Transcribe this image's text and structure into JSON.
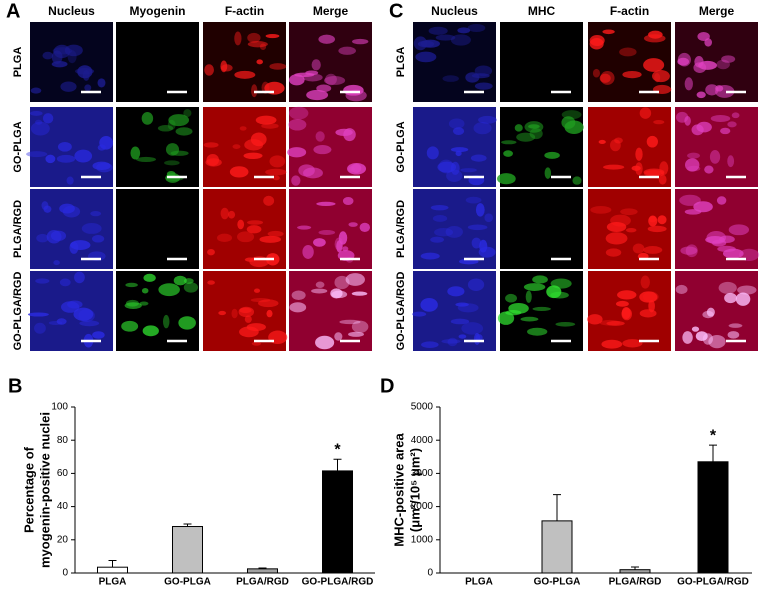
{
  "image_panels": [
    {
      "letter": "A",
      "columns": [
        "Nucleus",
        "Myogenin",
        "F-actin",
        "Merge"
      ],
      "rows": [
        "PLGA",
        "GO-PLGA",
        "PLGA/RGD",
        "GO-PLGA/RGD"
      ]
    },
    {
      "letter": "C",
      "columns": [
        "Nucleus",
        "MHC",
        "F-actin",
        "Merge"
      ],
      "rows": [
        "PLGA",
        "GO-PLGA",
        "PLGA/RGD",
        "GO-PLGA/RGD"
      ]
    }
  ],
  "chart_data": [
    {
      "type": "bar",
      "panel_label": "B",
      "ylabel": [
        "Percentage of",
        "myogenin-positive nuclei"
      ],
      "categories": [
        "PLGA",
        "GO-PLGA",
        "PLGA/RGD",
        "GO-PLGA/RGD"
      ],
      "values": [
        3.5,
        28,
        2.5,
        61.5
      ],
      "errors": [
        4,
        1.5,
        0.5,
        7
      ],
      "colors": [
        "#ffffff",
        "#c0c0c0",
        "#a0a0a0",
        "#000000"
      ],
      "annotations": [
        null,
        null,
        null,
        "*"
      ],
      "ylim": [
        0,
        100
      ],
      "yticks": [
        0,
        20,
        40,
        60,
        80,
        100
      ]
    },
    {
      "type": "bar",
      "panel_label": "D",
      "ylabel": [
        "MHC-positive area",
        "(μm²/10⁵ μm²)"
      ],
      "categories": [
        "PLGA",
        "GO-PLGA",
        "PLGA/RGD",
        "GO-PLGA/RGD"
      ],
      "values": [
        0,
        1570,
        100,
        3350
      ],
      "errors": [
        0,
        790,
        80,
        500
      ],
      "colors": [
        "#ffffff",
        "#c0c0c0",
        "#a0a0a0",
        "#000000"
      ],
      "annotations": [
        null,
        null,
        null,
        "*"
      ],
      "ylim": [
        0,
        5000
      ],
      "yticks": [
        0,
        1000,
        2000,
        3000,
        4000,
        5000
      ]
    }
  ]
}
